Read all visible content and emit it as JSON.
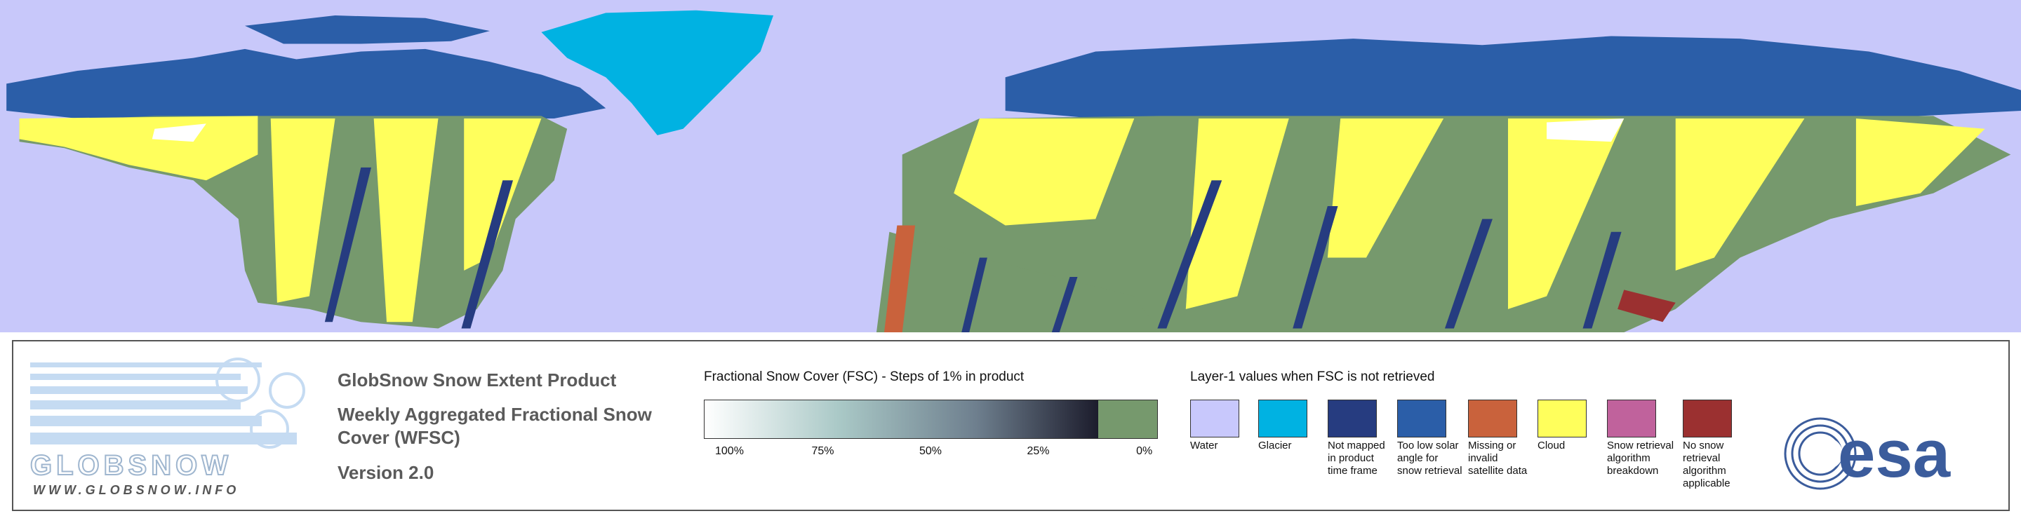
{
  "logo": {
    "wordmark": "GLOBSNOW",
    "url": "WWW.GLOBSNOW.INFO"
  },
  "product": {
    "title": "GlobSnow Snow Extent Product",
    "subtitle": "Weekly Aggregated Fractional Snow Cover (WFSC)",
    "version": "Version 2.0"
  },
  "fsc_scale": {
    "title": "Fractional Snow Cover (FSC) - Steps of 1% in product",
    "labels": [
      "100%",
      "75%",
      "50%",
      "25%",
      "0%"
    ]
  },
  "layer1": {
    "title": "Layer-1 values when FSC is not retrieved",
    "items": [
      {
        "label": "Water",
        "color": "#c8c8fc"
      },
      {
        "label": "Glacier",
        "color": "#00b2e2"
      },
      {
        "label": "Not mapped in product time frame",
        "color": "#263c80"
      },
      {
        "label": "Too low solar angle for snow retrieval",
        "color": "#2b5ea8"
      },
      {
        "label": "Missing or invalid satellite data",
        "color": "#c9623c"
      },
      {
        "label": "Cloud",
        "color": "#ffff5c"
      },
      {
        "label": "Snow retrieval algorithm breakdown",
        "color": "#c0629c"
      },
      {
        "label": "No snow retrieval algorithm applicable",
        "color": "#9b3030"
      }
    ]
  },
  "esa_logo": "esa"
}
